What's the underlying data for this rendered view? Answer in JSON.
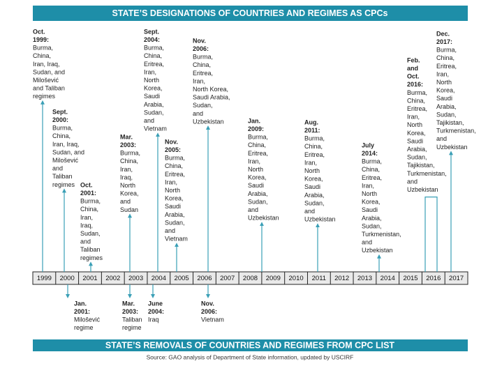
{
  "header": {
    "title": "STATE’S DESIGNATIONS OF COUNTRIES AND REGIMES AS CPCs"
  },
  "years": [
    "1999",
    "2000",
    "2001",
    "2002",
    "2003",
    "2004",
    "2005",
    "2006",
    "2007",
    "2008",
    "2009",
    "2010",
    "2011",
    "2012",
    "2013",
    "2014",
    "2015",
    "2016",
    "2017"
  ],
  "designations": [
    {
      "date": [
        "Oct.",
        "1999:"
      ],
      "text": [
        "Burma,",
        "China,",
        "Iran, Iraq,",
        "Sudan, and",
        "Milošević",
        "and Taliban",
        "regimes"
      ]
    },
    {
      "date": [
        "Sept.",
        "2000:"
      ],
      "text": [
        "Burma,",
        "China,",
        "Iran, Iraq,",
        "Sudan, and",
        "Milošević",
        "and",
        "Taliban",
        "regimes"
      ]
    },
    {
      "date": [
        "Oct.",
        "2001:"
      ],
      "text": [
        "Burma,",
        "China,",
        "Iran,",
        "Iraq,",
        "Sudan,",
        "and",
        "Taliban",
        "regimes"
      ]
    },
    {
      "date": [
        "Mar.",
        "2003:"
      ],
      "text": [
        "Burma,",
        "China,",
        "Iran,",
        "Iraq,",
        "North",
        "Korea,",
        "and",
        "Sudan"
      ]
    },
    {
      "date": [
        "Sept.",
        "2004:"
      ],
      "text": [
        "Burma,",
        "China,",
        "Eritrea,",
        "Iran,",
        "North",
        "Korea,",
        "Saudi",
        "Arabia,",
        "Sudan,",
        "and",
        "Vietnam"
      ]
    },
    {
      "date": [
        "Nov.",
        "2005:"
      ],
      "text": [
        "Burma,",
        "China,",
        "Eritrea,",
        "Iran,",
        "North",
        "Korea,",
        "Saudi",
        "Arabia,",
        "Sudan,",
        "and",
        "Vietnam"
      ]
    },
    {
      "date": [
        "Nov.",
        "2006:"
      ],
      "text": [
        "Burma,",
        "China,",
        "Eritrea,",
        "Iran,",
        "North Korea,",
        "Saudi Arabia,",
        "Sudan,",
        "and",
        "Uzbekistan"
      ]
    },
    {
      "date": [
        "Jan.",
        "2009:"
      ],
      "text": [
        "Burma,",
        "China,",
        "Eritrea,",
        "Iran,",
        "North",
        "Korea,",
        "Saudi",
        "Arabia,",
        "Sudan,",
        "and",
        "Uzbekistan"
      ]
    },
    {
      "date": [
        "Aug.",
        "2011:"
      ],
      "text": [
        "Burma,",
        "China,",
        "Eritrea,",
        "Iran,",
        "North",
        "Korea,",
        "Saudi",
        "Arabia,",
        "Sudan,",
        "and",
        "Uzbekistan"
      ]
    },
    {
      "date": [
        "July",
        "2014:"
      ],
      "text": [
        "Burma,",
        "China,",
        "Eritrea,",
        "Iran,",
        "North",
        "Korea,",
        "Saudi",
        "Arabia,",
        "Sudan,",
        "Turkmenistan,",
        "and",
        "Uzbekistan"
      ]
    },
    {
      "date": [
        "Feb.",
        "and",
        "Oct.",
        "2016:"
      ],
      "text": [
        "Burma,",
        "China,",
        "Eritrea,",
        "Iran,",
        "North",
        "Korea,",
        "Saudi",
        "Arabia,",
        "Sudan,",
        "Tajikistan,",
        "Turkmenistan,",
        "and",
        "Uzbekistan"
      ]
    },
    {
      "date": [
        "Dec.",
        "2017:"
      ],
      "text": [
        "Burma,",
        "China,",
        "Eritrea,",
        "Iran,",
        "North",
        "Korea,",
        "Saudi",
        "Arabia,",
        "Sudan,",
        "Tajikistan,",
        "Turkmenistan,",
        "and",
        "Uzbekistan"
      ]
    }
  ],
  "removals": [
    {
      "date": [
        "Jan.",
        "2001:"
      ],
      "text": [
        "Milošević",
        "regime"
      ]
    },
    {
      "date": [
        "Mar.",
        "2003:"
      ],
      "text": [
        "Taliban",
        "regime"
      ]
    },
    {
      "date": [
        "June",
        "2004:"
      ],
      "text": [
        "Iraq"
      ]
    },
    {
      "date": [
        "Nov.",
        "2006:"
      ],
      "text": [
        "Vietnam"
      ]
    }
  ],
  "footer": {
    "title": "STATE’S REMOVALS OF COUNTRIES AND REGIMES FROM CPC LIST",
    "source": "Source: GAO analysis of Department of State information, updated by USCIRF"
  }
}
